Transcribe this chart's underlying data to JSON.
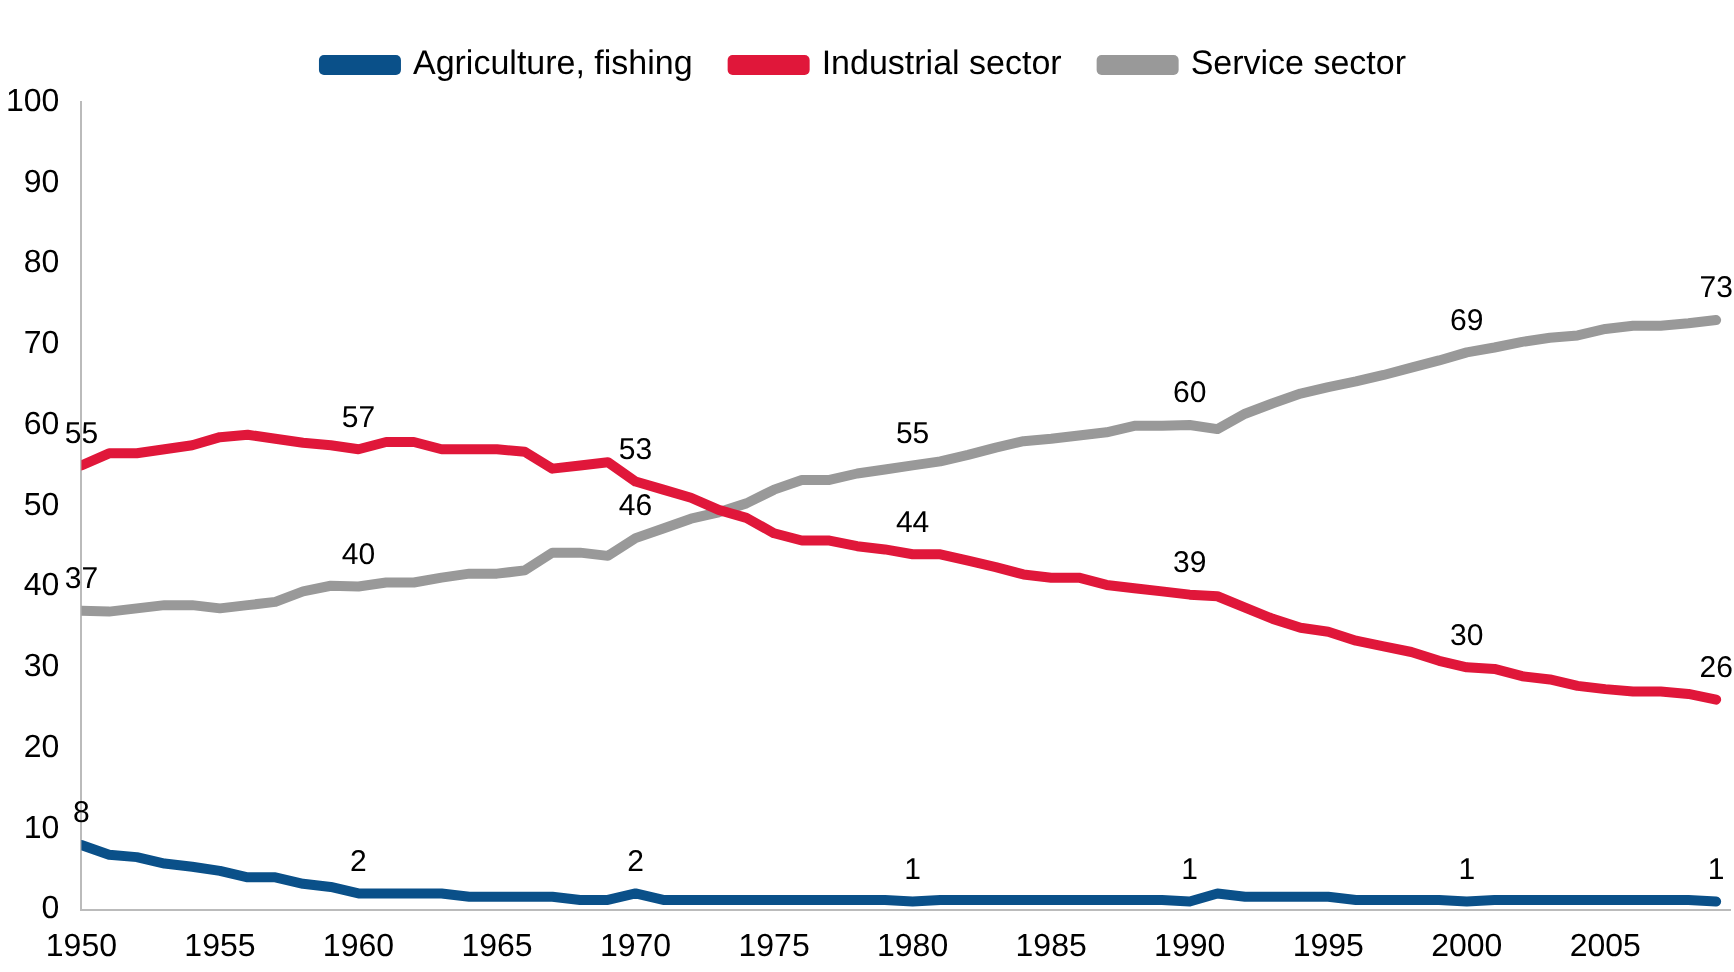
{
  "chart_data": {
    "type": "line",
    "x": [
      1950,
      1951,
      1952,
      1953,
      1954,
      1955,
      1956,
      1957,
      1958,
      1959,
      1960,
      1961,
      1962,
      1963,
      1964,
      1965,
      1966,
      1967,
      1968,
      1969,
      1970,
      1971,
      1972,
      1973,
      1974,
      1975,
      1976,
      1977,
      1978,
      1979,
      1980,
      1981,
      1982,
      1983,
      1984,
      1985,
      1986,
      1987,
      1988,
      1989,
      1990,
      1991,
      1992,
      1993,
      1994,
      1995,
      1996,
      1997,
      1998,
      1999,
      2000,
      2001,
      2002,
      2003,
      2004,
      2005,
      2006,
      2007,
      2008,
      2009
    ],
    "series": [
      {
        "name": "Agriculture, fishing",
        "color": "#0a5089",
        "values": [
          8,
          6.8,
          6.5,
          5.7,
          5.3,
          4.8,
          4.0,
          4.0,
          3.2,
          2.8,
          2,
          2.0,
          2.0,
          2.0,
          1.6,
          1.6,
          1.6,
          1.6,
          1.2,
          1.2,
          2,
          1.2,
          1.2,
          1.2,
          1.2,
          1.2,
          1.2,
          1.2,
          1.2,
          1.2,
          1,
          1.2,
          1.2,
          1.2,
          1.2,
          1.2,
          1.2,
          1.2,
          1.2,
          1.2,
          1,
          2.0,
          1.6,
          1.6,
          1.6,
          1.6,
          1.2,
          1.2,
          1.2,
          1.2,
          1,
          1.2,
          1.2,
          1.2,
          1.2,
          1.2,
          1.2,
          1.2,
          1.2,
          1
        ],
        "value_labels": [
          "8",
          null,
          null,
          null,
          null,
          null,
          null,
          null,
          null,
          null,
          "2",
          null,
          null,
          null,
          null,
          null,
          null,
          null,
          null,
          null,
          "2",
          null,
          null,
          null,
          null,
          null,
          null,
          null,
          null,
          null,
          "1",
          null,
          null,
          null,
          null,
          null,
          null,
          null,
          null,
          null,
          "1",
          null,
          null,
          null,
          null,
          null,
          null,
          null,
          null,
          null,
          "1",
          null,
          null,
          null,
          null,
          null,
          null,
          null,
          null,
          "1"
        ]
      },
      {
        "name": "Industrial sector",
        "color": "#e0173a",
        "values": [
          55,
          56.5,
          56.5,
          57,
          57.5,
          58.5,
          58.8,
          58.3,
          57.8,
          57.5,
          57,
          57.9,
          57.9,
          57,
          57,
          57,
          56.7,
          54.6,
          55,
          55.4,
          53,
          52,
          51,
          49.5,
          48.5,
          46.6,
          45.7,
          45.7,
          45,
          44.6,
          44,
          44,
          43.2,
          42.4,
          41.5,
          41.1,
          41.1,
          40.2,
          39.8,
          39.4,
          39,
          38.8,
          37.4,
          36,
          34.9,
          34.4,
          33.3,
          32.6,
          31.9,
          30.8,
          30,
          29.8,
          28.9,
          28.5,
          27.7,
          27.3,
          27,
          27,
          26.7,
          26
        ],
        "value_labels": [
          "55",
          null,
          null,
          null,
          null,
          null,
          null,
          null,
          null,
          null,
          "57",
          null,
          null,
          null,
          null,
          null,
          null,
          null,
          null,
          null,
          "53",
          null,
          null,
          null,
          null,
          null,
          null,
          null,
          null,
          null,
          "44",
          null,
          null,
          null,
          null,
          null,
          null,
          null,
          null,
          null,
          "39",
          null,
          null,
          null,
          null,
          null,
          null,
          null,
          null,
          null,
          "30",
          null,
          null,
          null,
          null,
          null,
          null,
          null,
          null,
          "26"
        ]
      },
      {
        "name": "Service sector",
        "color": "#999999",
        "values": [
          37,
          36.9,
          37.3,
          37.7,
          37.7,
          37.3,
          37.7,
          38.1,
          39.4,
          40.1,
          40,
          40.5,
          40.5,
          41.1,
          41.6,
          41.6,
          42,
          44.2,
          44.2,
          43.8,
          46,
          47.2,
          48.4,
          49.2,
          50.3,
          52,
          53.2,
          53.2,
          54,
          54.5,
          55,
          55.5,
          56.3,
          57.2,
          58,
          58.3,
          58.7,
          59.1,
          59.9,
          59.9,
          60,
          59.5,
          61.4,
          62.7,
          63.9,
          64.7,
          65.4,
          66.2,
          67.1,
          68,
          69,
          69.6,
          70.3,
          70.8,
          71.1,
          71.9,
          72.3,
          72.3,
          72.6,
          73
        ],
        "value_labels": [
          "37",
          null,
          null,
          null,
          null,
          null,
          null,
          null,
          null,
          null,
          "40",
          null,
          null,
          null,
          null,
          null,
          null,
          null,
          null,
          null,
          "46",
          null,
          null,
          null,
          null,
          null,
          null,
          null,
          null,
          null,
          "55",
          null,
          null,
          null,
          null,
          null,
          null,
          null,
          null,
          null,
          "60",
          null,
          null,
          null,
          null,
          null,
          null,
          null,
          null,
          null,
          "69",
          null,
          null,
          null,
          null,
          null,
          null,
          null,
          null,
          "73"
        ]
      }
    ],
    "xlim": [
      1950,
      2009.5
    ],
    "xticks": [
      1950,
      1955,
      1960,
      1965,
      1970,
      1975,
      1980,
      1985,
      1990,
      1995,
      2000,
      2005
    ],
    "ylim": [
      0,
      100
    ],
    "yticks": [
      0,
      10,
      20,
      30,
      40,
      50,
      60,
      70,
      80,
      90,
      100
    ],
    "grid": false,
    "legend": "top",
    "marker": "none",
    "line_style": "solid"
  }
}
